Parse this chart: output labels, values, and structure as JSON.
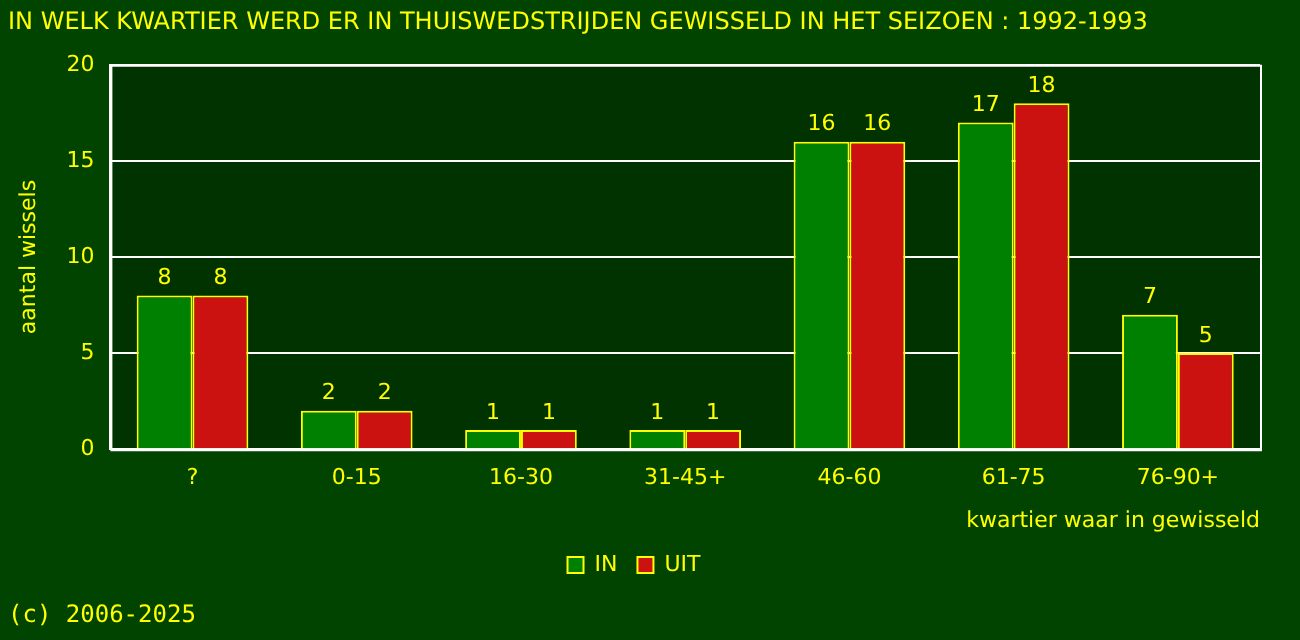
{
  "chart_data": {
    "type": "bar",
    "title": "IN WELK KWARTIER WERD ER IN THUISWEDSTRIJDEN GEWISSELD IN HET SEIZOEN : 1992-1993",
    "xlabel": "kwartier waar in gewisseld",
    "ylabel": "aantal wissels",
    "categories": [
      "?",
      "0-15",
      "16-30",
      "31-45+",
      "46-60",
      "61-75",
      "76-90+"
    ],
    "series": [
      {
        "name": "IN",
        "color": "#008000",
        "values": [
          8,
          2,
          1,
          1,
          16,
          17,
          7
        ]
      },
      {
        "name": "UIT",
        "color": "#cc1111",
        "values": [
          8,
          2,
          1,
          1,
          16,
          18,
          5
        ]
      }
    ],
    "ylim": [
      0,
      20
    ],
    "yticks": [
      0,
      5,
      10,
      15,
      20
    ],
    "grid": "y",
    "legend": "bottom",
    "data_labels": true,
    "annotations": [
      "(c) 2006-2025"
    ]
  }
}
